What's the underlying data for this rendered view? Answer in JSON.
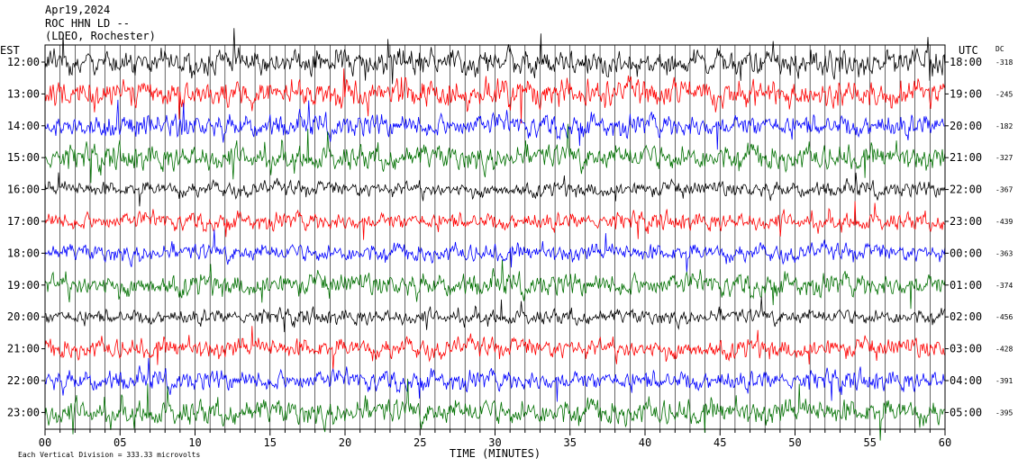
{
  "header": {
    "date": "Apr19,2024",
    "station": "ROC HHN LD --",
    "network": "(LDEO, Rochester)"
  },
  "chart_data": {
    "type": "line",
    "title": "",
    "left_axis_label": "EST",
    "right_axis_label": "UTC",
    "dc_header": "DC",
    "xlabel": "TIME (MINUTES)",
    "xlim": [
      0,
      60
    ],
    "x_ticks": [
      "00",
      "05",
      "10",
      "15",
      "20",
      "25",
      "30",
      "35",
      "40",
      "45",
      "50",
      "55",
      "60"
    ],
    "trace_colors": [
      "#000000",
      "#ff0000",
      "#0000ff",
      "#007000"
    ],
    "traces": [
      {
        "est": "12:00",
        "utc": "18:00",
        "dc": "-318",
        "color": "#000000",
        "amplitude": 1.0
      },
      {
        "est": "13:00",
        "utc": "19:00",
        "dc": "-245",
        "color": "#ff0000",
        "amplitude": 1.1
      },
      {
        "est": "14:00",
        "utc": "20:00",
        "dc": "-182",
        "color": "#0000ff",
        "amplitude": 0.9
      },
      {
        "est": "15:00",
        "utc": "21:00",
        "dc": "-327",
        "color": "#007000",
        "amplitude": 1.0
      },
      {
        "est": "16:00",
        "utc": "22:00",
        "dc": "-367",
        "color": "#000000",
        "amplitude": 0.6
      },
      {
        "est": "17:00",
        "utc": "23:00",
        "dc": "-439",
        "color": "#ff0000",
        "amplitude": 0.7
      },
      {
        "est": "18:00",
        "utc": "00:00",
        "dc": "-363",
        "color": "#0000ff",
        "amplitude": 0.7
      },
      {
        "est": "19:00",
        "utc": "01:00",
        "dc": "-374",
        "color": "#007000",
        "amplitude": 0.9
      },
      {
        "est": "20:00",
        "utc": "02:00",
        "dc": "-456",
        "color": "#000000",
        "amplitude": 0.6
      },
      {
        "est": "21:00",
        "utc": "03:00",
        "dc": "-428",
        "color": "#ff0000",
        "amplitude": 0.8
      },
      {
        "est": "22:00",
        "utc": "04:00",
        "dc": "-391",
        "color": "#0000ff",
        "amplitude": 0.8
      },
      {
        "est": "23:00",
        "utc": "05:00",
        "dc": "-395",
        "color": "#007000",
        "amplitude": 1.0
      }
    ],
    "grid": true,
    "footer": "Each Vertical Division =  333.33 microvolts"
  }
}
